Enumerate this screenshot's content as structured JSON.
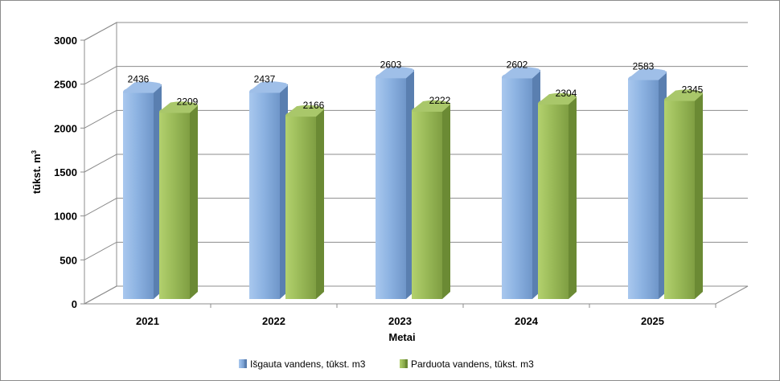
{
  "chart_data": {
    "type": "bar",
    "categories": [
      "2021",
      "2022",
      "2023",
      "2024",
      "2025"
    ],
    "series": [
      {
        "name": "Išgauta vandens, tūkst. m3",
        "values": [
          2436,
          2437,
          2603,
          2602,
          2583
        ],
        "color": "#8db3e2"
      },
      {
        "name": "Parduota vandens, tūkst. m3",
        "values": [
          2209,
          2166,
          2222,
          2304,
          2345
        ],
        "color": "#9bbb59"
      }
    ],
    "xlabel": "Metai",
    "ylabel": "tūkst. m",
    "ylabel_superscript": "3",
    "ylim": [
      0,
      3000
    ],
    "yticks": [
      0,
      500,
      1000,
      1500,
      2000,
      2500,
      3000
    ],
    "grid": true,
    "legend_position": "bottom",
    "three_d": true
  }
}
